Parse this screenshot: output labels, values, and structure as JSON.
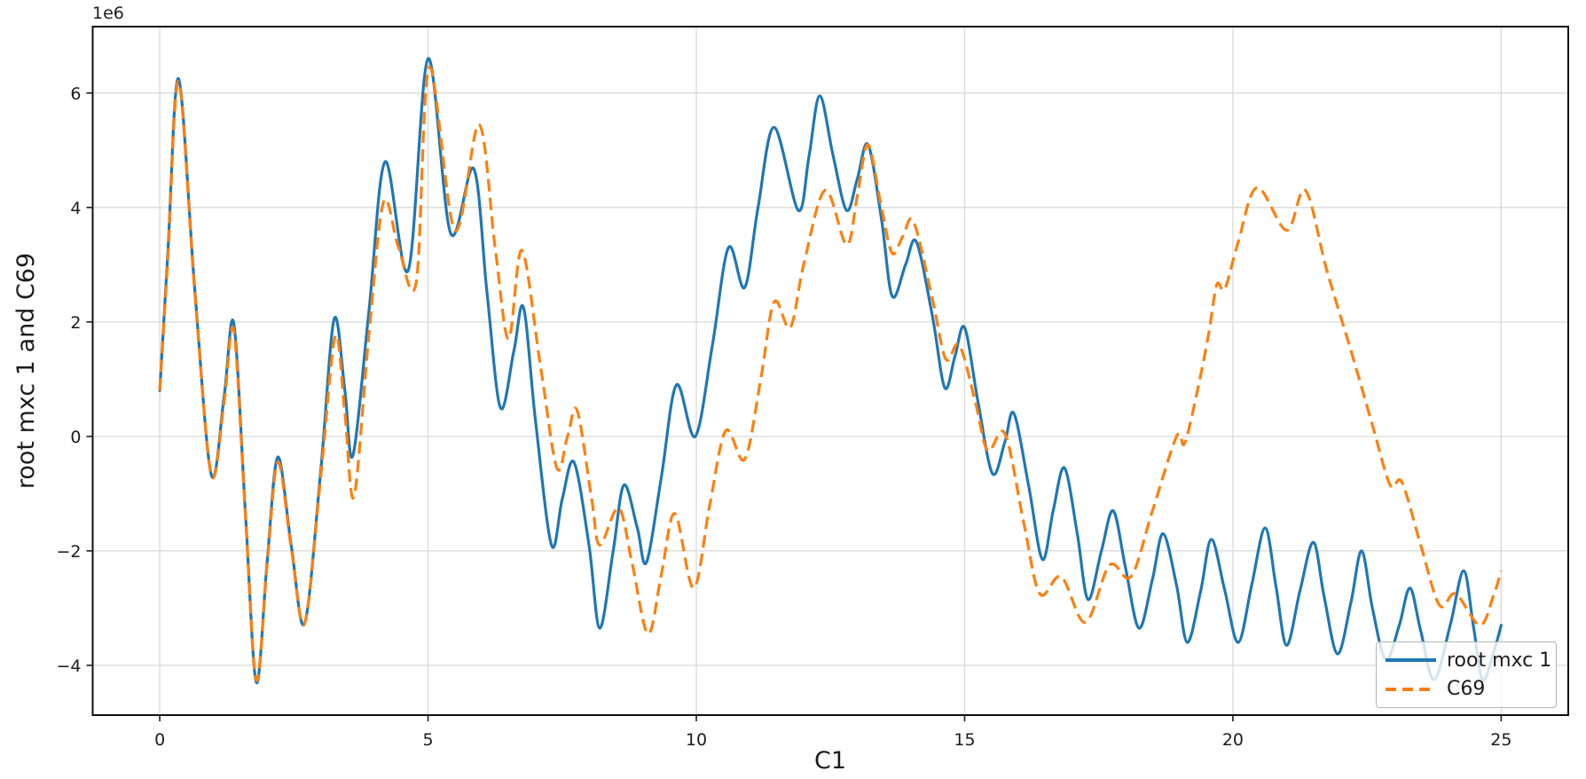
{
  "chart_data": {
    "type": "line",
    "title": "",
    "xlabel": "C1",
    "ylabel": "root mxc 1 and C69",
    "y_offset_label": "1e6",
    "y_unit": "1e6",
    "xlim": [
      -1.25,
      26.25
    ],
    "ylim": [
      -4.87,
      7.16
    ],
    "xticks": [
      0,
      5,
      10,
      15,
      20,
      25
    ],
    "yticks": [
      -4,
      -2,
      0,
      2,
      4,
      6
    ],
    "grid": true,
    "background_color": "#ffffff",
    "grid_color": "#d9d9d9",
    "legend": {
      "position": "lower right",
      "entries": [
        {
          "label": "root mxc 1",
          "color": "#1f77b4",
          "linestyle": "solid"
        },
        {
          "label": "C69",
          "color": "#ff7f0e",
          "linestyle": "dashed"
        }
      ]
    },
    "series": [
      {
        "name": "root mxc 1",
        "color": "#1f77b4",
        "linestyle": "solid",
        "points": [
          [
            0,
            0.8
          ],
          [
            0.15,
            3.2
          ],
          [
            0.35,
            6.25
          ],
          [
            0.65,
            2.6
          ],
          [
            0.96,
            -0.67
          ],
          [
            1.2,
            0.7
          ],
          [
            1.38,
            1.97
          ],
          [
            1.6,
            -1.4
          ],
          [
            1.8,
            -4.3
          ],
          [
            2,
            -2.2
          ],
          [
            2.2,
            -0.36
          ],
          [
            2.45,
            -1.9
          ],
          [
            2.7,
            -3.27
          ],
          [
            3,
            -0.6
          ],
          [
            3.25,
            2.05
          ],
          [
            3.45,
            0.8
          ],
          [
            3.6,
            -0.33
          ],
          [
            3.9,
            2.2
          ],
          [
            4.2,
            4.8
          ],
          [
            4.63,
            2.9
          ],
          [
            5,
            6.6
          ],
          [
            5.42,
            3.55
          ],
          [
            5.85,
            4.68
          ],
          [
            6.1,
            2.5
          ],
          [
            6.35,
            0.5
          ],
          [
            6.6,
            1.5
          ],
          [
            6.78,
            2.25
          ],
          [
            7,
            0.3
          ],
          [
            7.3,
            -1.9
          ],
          [
            7.5,
            -1.1
          ],
          [
            7.72,
            -0.45
          ],
          [
            8,
            -1.9
          ],
          [
            8.2,
            -3.35
          ],
          [
            8.45,
            -2
          ],
          [
            8.65,
            -0.85
          ],
          [
            8.9,
            -1.6
          ],
          [
            9.07,
            -2.2
          ],
          [
            9.35,
            -0.7
          ],
          [
            9.63,
            0.9
          ],
          [
            9.98,
            0
          ],
          [
            10.3,
            1.6
          ],
          [
            10.6,
            3.3
          ],
          [
            10.9,
            2.6
          ],
          [
            11.15,
            4
          ],
          [
            11.45,
            5.4
          ],
          [
            11.9,
            3.95
          ],
          [
            12.1,
            4.9
          ],
          [
            12.3,
            5.95
          ],
          [
            12.55,
            4.9
          ],
          [
            12.8,
            3.95
          ],
          [
            13,
            4.5
          ],
          [
            13.2,
            5.1
          ],
          [
            13.45,
            3.8
          ],
          [
            13.65,
            2.45
          ],
          [
            13.9,
            3
          ],
          [
            14.1,
            3.4
          ],
          [
            14.4,
            2.1
          ],
          [
            14.63,
            0.85
          ],
          [
            14.82,
            1.4
          ],
          [
            15,
            1.9
          ],
          [
            15.25,
            0.6
          ],
          [
            15.52,
            -0.65
          ],
          [
            15.75,
            -0.1
          ],
          [
            15.92,
            0.4
          ],
          [
            16.2,
            -0.9
          ],
          [
            16.45,
            -2.15
          ],
          [
            16.65,
            -1.3
          ],
          [
            16.86,
            -0.55
          ],
          [
            17.1,
            -1.7
          ],
          [
            17.3,
            -2.85
          ],
          [
            17.55,
            -2
          ],
          [
            17.77,
            -1.3
          ],
          [
            18,
            -2.3
          ],
          [
            18.25,
            -3.35
          ],
          [
            18.5,
            -2.5
          ],
          [
            18.7,
            -1.7
          ],
          [
            18.95,
            -2.6
          ],
          [
            19.15,
            -3.6
          ],
          [
            19.4,
            -2.7
          ],
          [
            19.6,
            -1.8
          ],
          [
            19.85,
            -2.7
          ],
          [
            20.1,
            -3.6
          ],
          [
            20.35,
            -2.6
          ],
          [
            20.6,
            -1.6
          ],
          [
            20.8,
            -2.6
          ],
          [
            21,
            -3.65
          ],
          [
            21.25,
            -2.7
          ],
          [
            21.5,
            -1.85
          ],
          [
            21.7,
            -2.8
          ],
          [
            21.95,
            -3.8
          ],
          [
            22.2,
            -2.9
          ],
          [
            22.4,
            -2
          ],
          [
            22.6,
            -3
          ],
          [
            22.85,
            -3.9
          ],
          [
            23.1,
            -3.3
          ],
          [
            23.3,
            -2.65
          ],
          [
            23.5,
            -3.4
          ],
          [
            23.75,
            -4.25
          ],
          [
            24.05,
            -3.3
          ],
          [
            24.3,
            -2.35
          ],
          [
            24.48,
            -3.3
          ],
          [
            24.65,
            -4.25
          ],
          [
            24.85,
            -3.8
          ],
          [
            25,
            -3.3
          ]
        ]
      },
      {
        "name": "C69",
        "color": "#ff7f0e",
        "linestyle": "dashed",
        "points": [
          [
            0,
            0.8
          ],
          [
            0.15,
            3.1
          ],
          [
            0.35,
            6.2
          ],
          [
            0.65,
            2.55
          ],
          [
            0.96,
            -0.67
          ],
          [
            1.2,
            0.6
          ],
          [
            1.38,
            1.85
          ],
          [
            1.6,
            -1.45
          ],
          [
            1.8,
            -4.26
          ],
          [
            2,
            -2.25
          ],
          [
            2.2,
            -0.45
          ],
          [
            2.45,
            -1.95
          ],
          [
            2.7,
            -3.27
          ],
          [
            3,
            -0.7
          ],
          [
            3.27,
            1.75
          ],
          [
            3.45,
            0.4
          ],
          [
            3.62,
            -1.05
          ],
          [
            3.9,
            1.8
          ],
          [
            4.17,
            4.1
          ],
          [
            4.45,
            3.3
          ],
          [
            4.78,
            2.7
          ],
          [
            5.02,
            6.45
          ],
          [
            5.5,
            3.6
          ],
          [
            5.95,
            5.45
          ],
          [
            6.25,
            3.3
          ],
          [
            6.5,
            1.7
          ],
          [
            6.75,
            3.25
          ],
          [
            7.1,
            1.2
          ],
          [
            7.4,
            -0.55
          ],
          [
            7.6,
            0
          ],
          [
            7.78,
            0.45
          ],
          [
            8.05,
            -1.1
          ],
          [
            8.2,
            -1.9
          ],
          [
            8.55,
            -1.25
          ],
          [
            8.8,
            -2.2
          ],
          [
            9.1,
            -3.45
          ],
          [
            9.35,
            -2.4
          ],
          [
            9.6,
            -1.35
          ],
          [
            9.95,
            -2.65
          ],
          [
            10.25,
            -1.2
          ],
          [
            10.55,
            0.1
          ],
          [
            10.9,
            -0.4
          ],
          [
            11.2,
            1
          ],
          [
            11.45,
            2.35
          ],
          [
            11.75,
            1.9
          ],
          [
            12,
            3
          ],
          [
            12.4,
            4.3
          ],
          [
            12.8,
            3.35
          ],
          [
            13,
            4.2
          ],
          [
            13.2,
            5.1
          ],
          [
            13.45,
            4
          ],
          [
            13.65,
            3.2
          ],
          [
            13.85,
            3.5
          ],
          [
            14.05,
            3.75
          ],
          [
            14.4,
            2.4
          ],
          [
            14.65,
            1.35
          ],
          [
            14.9,
            1.6
          ],
          [
            15.2,
            0.6
          ],
          [
            15.43,
            -0.25
          ],
          [
            15.75,
            0.05
          ],
          [
            16.1,
            -1.5
          ],
          [
            16.4,
            -2.75
          ],
          [
            16.8,
            -2.45
          ],
          [
            17.25,
            -3.25
          ],
          [
            17.7,
            -2.25
          ],
          [
            18.1,
            -2.45
          ],
          [
            18.5,
            -1.3
          ],
          [
            18.95,
            0
          ],
          [
            19.1,
            -0.12
          ],
          [
            19.35,
            0.85
          ],
          [
            19.55,
            1.8
          ],
          [
            19.7,
            2.65
          ],
          [
            19.85,
            2.58
          ],
          [
            20.1,
            3.4
          ],
          [
            20.45,
            4.35
          ],
          [
            21,
            3.6
          ],
          [
            21.35,
            4.3
          ],
          [
            21.75,
            2.9
          ],
          [
            22.2,
            1.5
          ],
          [
            22.6,
            0.2
          ],
          [
            22.93,
            -0.85
          ],
          [
            23.15,
            -0.8
          ],
          [
            23.5,
            -1.9
          ],
          [
            23.85,
            -2.95
          ],
          [
            24.15,
            -2.75
          ],
          [
            24.6,
            -3.3
          ],
          [
            24.85,
            -2.8
          ],
          [
            25,
            -2.35
          ]
        ]
      }
    ]
  }
}
